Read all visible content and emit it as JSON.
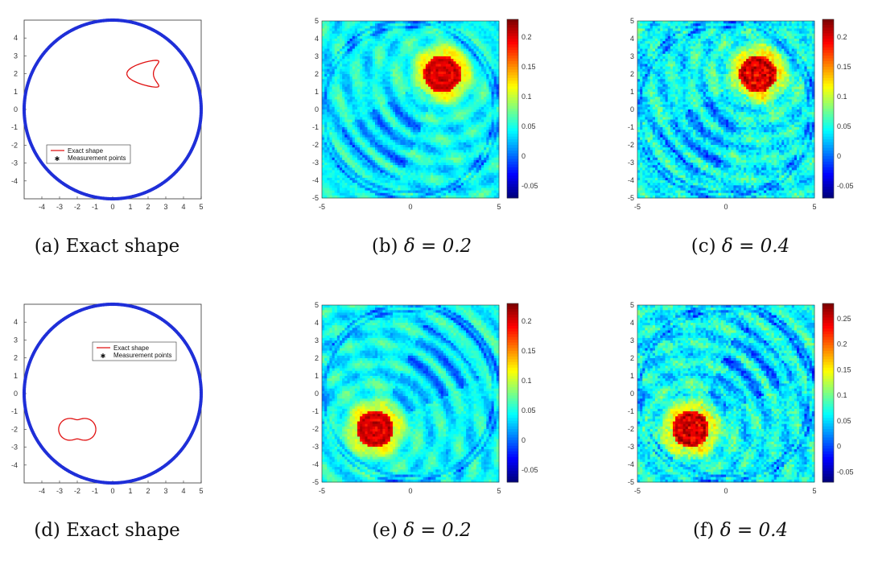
{
  "figure": {
    "panels": [
      {
        "id": "a",
        "kind": "shape",
        "caption_label": "(a)",
        "caption_text": "Exact shape",
        "shape": "kite",
        "center": [
          1.8,
          2.0
        ],
        "legend": {
          "line": "Exact shape",
          "points": "Measurement points"
        }
      },
      {
        "id": "b",
        "kind": "indicator",
        "caption_label": "(b)",
        "caption_text": "δ = 0.2",
        "delta": 0.2,
        "colorbar_ticks": [
          "0.2",
          "0.15",
          "0.1",
          "0.05",
          "0",
          "-0.05"
        ],
        "source": [
          1.8,
          2.0
        ],
        "source_shape": "kite"
      },
      {
        "id": "c",
        "kind": "indicator",
        "caption_label": "(c)",
        "caption_text": "δ = 0.4",
        "delta": 0.4,
        "colorbar_ticks": [
          "0.2",
          "0.15",
          "0.1",
          "0.05",
          "0",
          "-0.05"
        ],
        "source": [
          1.8,
          2.0
        ],
        "source_shape": "kite"
      },
      {
        "id": "d",
        "kind": "shape",
        "caption_label": "(d)",
        "caption_text": "Exact shape",
        "shape": "peanut",
        "center": [
          -2.0,
          -2.0
        ],
        "legend": {
          "line": "Exact shape",
          "points": "Measurement points"
        }
      },
      {
        "id": "e",
        "kind": "indicator",
        "caption_label": "(e)",
        "caption_text": "δ = 0.2",
        "delta": 0.2,
        "colorbar_ticks": [
          "0.2",
          "0.15",
          "0.1",
          "0.05",
          "0",
          "-0.05"
        ],
        "source": [
          -2.0,
          -2.0
        ],
        "source_shape": "peanut"
      },
      {
        "id": "f",
        "kind": "indicator",
        "caption_label": "(f)",
        "caption_text": "δ = 0.4",
        "delta": 0.4,
        "colorbar_ticks": [
          "0.25",
          "0.2",
          "0.15",
          "0.1",
          "0.05",
          "0",
          "-0.05"
        ],
        "source": [
          -2.0,
          -2.0
        ],
        "source_shape": "peanut"
      }
    ],
    "axis_ticks_shape": [
      "-4",
      "-3",
      "-2",
      "-1",
      "0",
      "1",
      "2",
      "3",
      "4",
      "5"
    ],
    "axis_ticks_shape_y": [
      "4",
      "3",
      "2",
      "1",
      "0",
      "-1",
      "-2",
      "-3",
      "-4"
    ],
    "axis_ticks_map_x": [
      "-5",
      "0",
      "5"
    ],
    "axis_ticks_map_y": [
      "5",
      "4",
      "3",
      "2",
      "1",
      "0",
      "-1",
      "-2",
      "-3",
      "-4",
      "-5"
    ],
    "colors": {
      "circle": "#1f2fd8",
      "shape": "#e01010"
    }
  }
}
